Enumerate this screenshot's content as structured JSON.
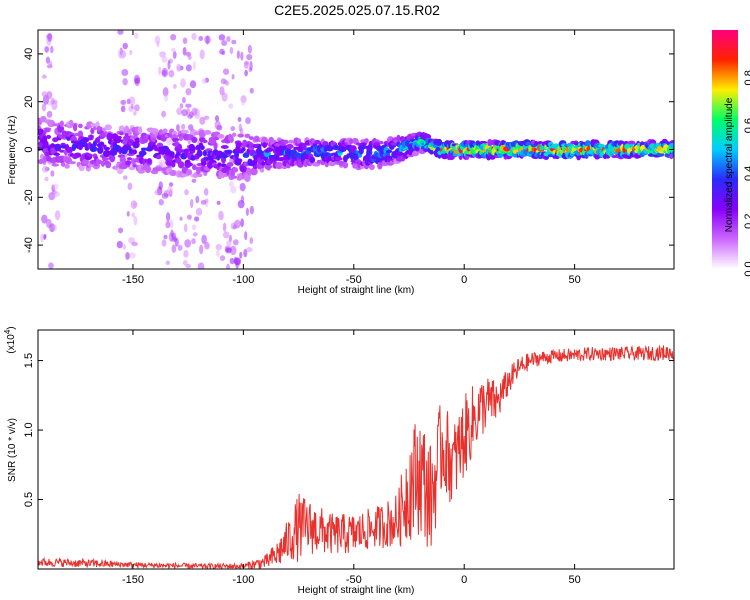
{
  "title": "C2E5.2025.025.07.15.R02",
  "colors": {
    "snr_line": "#e8302c",
    "axis": "#000000",
    "colormap": [
      "#ffffff",
      "#cc66ff",
      "#8800ff",
      "#2a2aff",
      "#00ccff",
      "#00ff66",
      "#ffee00",
      "#ff2200",
      "#ff0080"
    ]
  },
  "chart_data": [
    {
      "type": "heatmap",
      "title": "C2E5.2025.025.07.15.R02",
      "xlabel": "Height of straight line (km)",
      "ylabel": "Frequency (Hz)",
      "xlim": [
        -193,
        95
      ],
      "ylim": [
        -50,
        50
      ],
      "x_ticks": [
        -150,
        -100,
        -50,
        0,
        50
      ],
      "x_tick_labels": [
        "-150",
        "-100",
        "-50",
        "0",
        "50"
      ],
      "y_ticks": [
        40,
        20,
        0,
        -20,
        -40
      ],
      "y_tick_labels": [
        "40",
        "20",
        "0",
        "-20",
        "-40"
      ],
      "colorbar": {
        "label": "Normalized spectral amplitude",
        "range": [
          0,
          1
        ],
        "ticks": [
          0.0,
          0.2,
          0.4,
          0.6,
          0.8
        ],
        "tick_labels": [
          "0.0",
          "0.2",
          "0.4",
          "0.6",
          "0.8"
        ]
      },
      "ridge": {
        "x": [
          -193,
          -150,
          -100,
          -90,
          -60,
          -40,
          -30,
          -20,
          -10,
          0,
          20,
          50,
          95
        ],
        "center_hz": [
          3,
          0,
          -3,
          -2,
          -1,
          -2,
          0,
          3,
          0,
          0,
          0,
          0,
          0
        ],
        "halfwidth_hz": [
          10,
          9,
          10,
          6,
          5,
          6,
          5,
          4,
          3,
          3,
          3,
          3,
          3
        ],
        "peak_amplitude": [
          0.35,
          0.35,
          0.35,
          0.45,
          0.5,
          0.5,
          0.5,
          0.6,
          0.85,
          0.95,
          0.95,
          0.95,
          0.9
        ]
      },
      "noise_columns_x": [
        -188,
        -152,
        -135,
        -128,
        -120,
        -108,
        -100
      ]
    },
    {
      "type": "line",
      "xlabel": "Height of straight line (km)",
      "ylabel": "SNR (10 * v/v)",
      "y_scale_label": "(x10",
      "y_scale_exponent": "4",
      "xlim": [
        -193,
        95
      ],
      "ylim": [
        0,
        1.72
      ],
      "x_ticks": [
        -150,
        -100,
        -50,
        0,
        50
      ],
      "x_tick_labels": [
        "-150",
        "-100",
        "-50",
        "0",
        "50"
      ],
      "y_ticks": [
        0.5,
        1.0,
        1.5
      ],
      "y_tick_labels": [
        "0.5",
        "1.0",
        "1.5"
      ],
      "series": [
        {
          "x": [
            -193,
            -170,
            -150,
            -120,
            -100,
            -90,
            -85,
            -80,
            -75,
            -70,
            -60,
            -50,
            -40,
            -30,
            -25,
            -20,
            -15,
            -10,
            -5,
            0,
            5,
            10,
            15,
            20,
            25,
            30,
            35,
            40,
            60,
            80,
            95
          ],
          "y": [
            0.05,
            0.04,
            0.03,
            0.02,
            0.02,
            0.05,
            0.1,
            0.2,
            0.3,
            0.3,
            0.25,
            0.25,
            0.3,
            0.35,
            0.6,
            0.7,
            0.5,
            0.9,
            0.75,
            0.95,
            1.1,
            1.2,
            1.2,
            1.35,
            1.45,
            1.5,
            1.52,
            1.53,
            1.55,
            1.55,
            1.56
          ],
          "noise": [
            0.03,
            0.03,
            0.02,
            0.02,
            0.02,
            0.05,
            0.1,
            0.15,
            0.25,
            0.2,
            0.15,
            0.15,
            0.15,
            0.2,
            0.4,
            0.45,
            0.4,
            0.35,
            0.3,
            0.3,
            0.25,
            0.2,
            0.15,
            0.1,
            0.08,
            0.06,
            0.05,
            0.05,
            0.05,
            0.05,
            0.06
          ]
        }
      ]
    }
  ]
}
